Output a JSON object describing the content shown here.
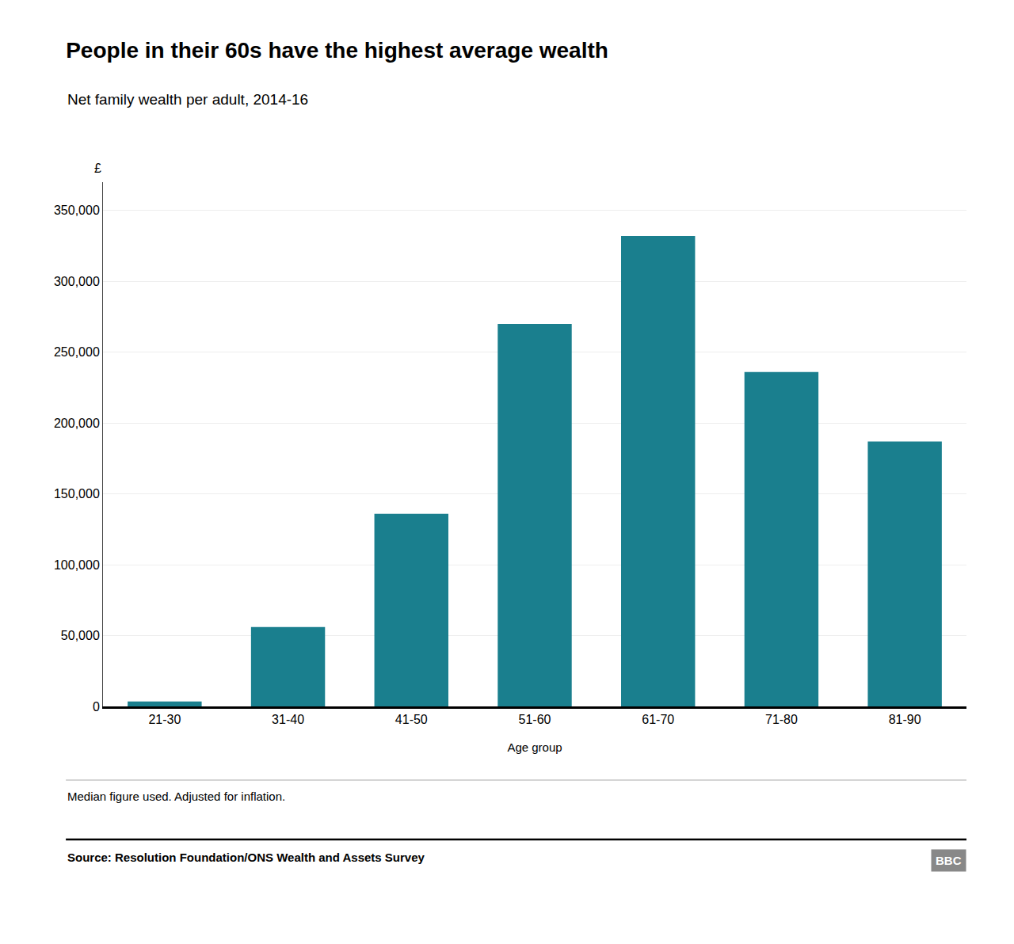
{
  "chart_data": {
    "type": "bar",
    "title": "People in their 60s have the highest average wealth",
    "subtitle": "Net family wealth per adult, 2014-16",
    "ylabel": "£",
    "xlabel": "Age group",
    "categories": [
      "21-30",
      "31-40",
      "41-50",
      "51-60",
      "61-70",
      "71-80",
      "81-90"
    ],
    "values": [
      3500,
      56000,
      136000,
      270000,
      332000,
      236000,
      187000
    ],
    "color": "#1a7f8e",
    "ylim": [
      0,
      370000
    ],
    "yticks": [
      0,
      {
        "value": 50000,
        "label": "50,000"
      },
      {
        "value": 100000,
        "label": "100,000"
      },
      {
        "value": 150000,
        "label": "150,000"
      },
      {
        "value": 200000,
        "label": "200,000"
      },
      {
        "value": 250000,
        "label": "250,000"
      },
      {
        "value": 300000,
        "label": "300,000"
      },
      {
        "value": 350000,
        "label": "350,000"
      }
    ],
    "grid": true,
    "footnote": "Median figure used. Adjusted for inflation.",
    "source": "Source: Resolution Foundation/ONS Wealth and Assets Survey",
    "logo": "BBC"
  }
}
